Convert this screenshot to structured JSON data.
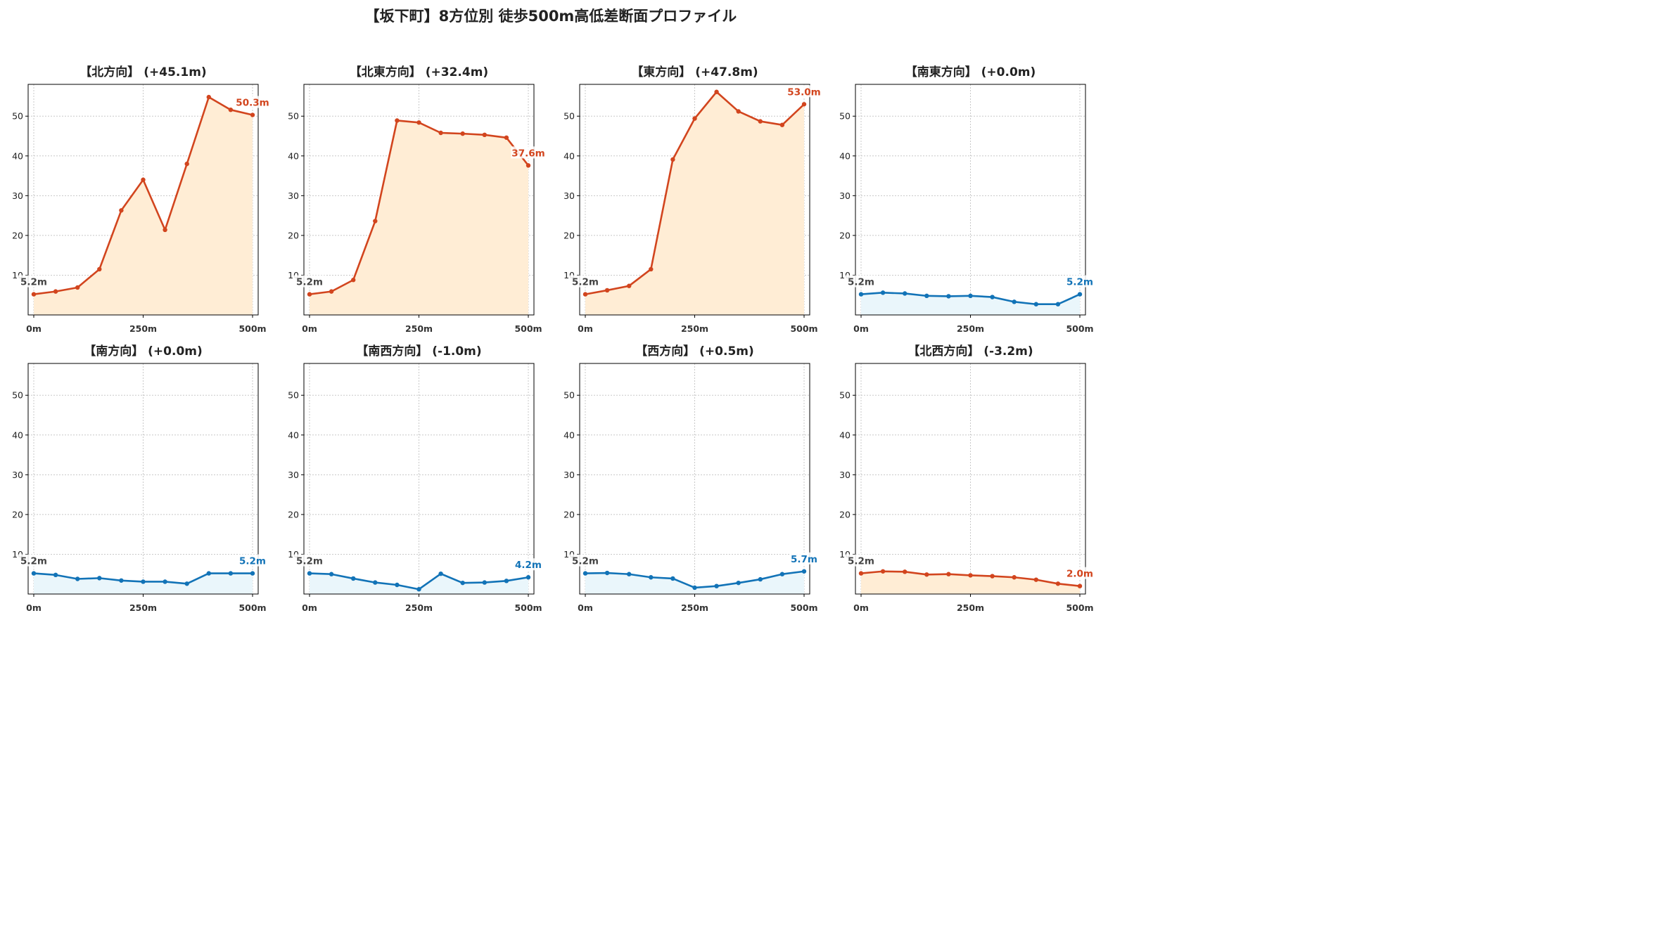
{
  "title": "【坂下町】8方位別 徒歩500m高低差断面プロファイル",
  "colors": {
    "up_line": "#d2451e",
    "up_fill": "#ffedd5",
    "down_line": "#1273b7",
    "down_fill": "#eaf6fb",
    "start_label": "#444444",
    "grid": "#c8c8c8"
  },
  "chart_data": [
    {
      "type": "line",
      "title": "【北方向】 (+45.1m)",
      "trend": "up",
      "x": [
        0,
        50,
        100,
        150,
        200,
        250,
        300,
        350,
        400,
        450,
        500
      ],
      "y": [
        5.2,
        5.9,
        6.9,
        11.5,
        26.3,
        34.0,
        21.4,
        38.0,
        54.8,
        51.6,
        50.3
      ],
      "start_label": "5.2m",
      "end_label": "50.3m",
      "xticks": [
        "0m",
        "250m",
        "500m"
      ],
      "yticks": [
        10,
        20,
        30,
        40,
        50
      ],
      "ylim": [
        0,
        58
      ],
      "grid": true
    },
    {
      "type": "line",
      "title": "【北東方向】 (+32.4m)",
      "trend": "up",
      "x": [
        0,
        50,
        100,
        150,
        200,
        250,
        300,
        350,
        400,
        450,
        500
      ],
      "y": [
        5.2,
        5.9,
        8.8,
        23.6,
        48.9,
        48.4,
        45.8,
        45.6,
        45.3,
        44.6,
        37.6
      ],
      "start_label": "5.2m",
      "end_label": "37.6m",
      "xticks": [
        "0m",
        "250m",
        "500m"
      ],
      "yticks": [
        10,
        20,
        30,
        40,
        50
      ],
      "ylim": [
        0,
        58
      ],
      "grid": true
    },
    {
      "type": "line",
      "title": "【東方向】 (+47.8m)",
      "trend": "up",
      "x": [
        0,
        50,
        100,
        150,
        200,
        250,
        300,
        350,
        400,
        450,
        500
      ],
      "y": [
        5.2,
        6.2,
        7.3,
        11.5,
        39.1,
        49.4,
        56.1,
        51.2,
        48.7,
        47.8,
        53.0
      ],
      "start_label": "5.2m",
      "end_label": "53.0m",
      "xticks": [
        "0m",
        "250m",
        "500m"
      ],
      "yticks": [
        10,
        20,
        30,
        40,
        50
      ],
      "ylim": [
        0,
        58
      ],
      "grid": true
    },
    {
      "type": "line",
      "title": "【南東方向】 (+0.0m)",
      "trend": "down",
      "x": [
        0,
        50,
        100,
        150,
        200,
        250,
        300,
        350,
        400,
        450,
        500
      ],
      "y": [
        5.2,
        5.6,
        5.4,
        4.8,
        4.7,
        4.8,
        4.5,
        3.3,
        2.7,
        2.7,
        5.2
      ],
      "start_label": "5.2m",
      "end_label": "5.2m",
      "xticks": [
        "0m",
        "250m",
        "500m"
      ],
      "yticks": [
        10,
        20,
        30,
        40,
        50
      ],
      "ylim": [
        0,
        58
      ],
      "grid": true
    },
    {
      "type": "line",
      "title": "【南方向】 (+0.0m)",
      "trend": "down",
      "x": [
        0,
        50,
        100,
        150,
        200,
        250,
        300,
        350,
        400,
        450,
        500
      ],
      "y": [
        5.2,
        4.8,
        3.8,
        4.0,
        3.4,
        3.1,
        3.1,
        2.6,
        5.2,
        5.2,
        5.2
      ],
      "start_label": "5.2m",
      "end_label": "5.2m",
      "xticks": [
        "0m",
        "250m",
        "500m"
      ],
      "yticks": [
        10,
        20,
        30,
        40,
        50
      ],
      "ylim": [
        0,
        58
      ],
      "grid": true
    },
    {
      "type": "line",
      "title": "【南西方向】 (-1.0m)",
      "trend": "down",
      "x": [
        0,
        50,
        100,
        150,
        200,
        250,
        300,
        350,
        400,
        450,
        500
      ],
      "y": [
        5.2,
        5.0,
        3.9,
        2.9,
        2.3,
        1.2,
        5.1,
        2.8,
        2.9,
        3.3,
        4.2
      ],
      "start_label": "5.2m",
      "end_label": "4.2m",
      "xticks": [
        "0m",
        "250m",
        "500m"
      ],
      "yticks": [
        10,
        20,
        30,
        40,
        50
      ],
      "ylim": [
        0,
        58
      ],
      "grid": true
    },
    {
      "type": "line",
      "title": "【西方向】 (+0.5m)",
      "trend": "down",
      "x": [
        0,
        50,
        100,
        150,
        200,
        250,
        300,
        350,
        400,
        450,
        500
      ],
      "y": [
        5.2,
        5.3,
        5.0,
        4.2,
        3.9,
        1.6,
        2.0,
        2.8,
        3.7,
        5.0,
        5.7
      ],
      "start_label": "5.2m",
      "end_label": "5.7m",
      "xticks": [
        "0m",
        "250m",
        "500m"
      ],
      "yticks": [
        10,
        20,
        30,
        40,
        50
      ],
      "ylim": [
        0,
        58
      ],
      "grid": true
    },
    {
      "type": "line",
      "title": "【北西方向】 (-3.2m)",
      "trend": "up",
      "x": [
        0,
        50,
        100,
        150,
        200,
        250,
        300,
        350,
        400,
        450,
        500
      ],
      "y": [
        5.2,
        5.7,
        5.6,
        4.9,
        5.0,
        4.7,
        4.5,
        4.2,
        3.6,
        2.6,
        2.0
      ],
      "start_label": "5.2m",
      "end_label": "2.0m",
      "xticks": [
        "0m",
        "250m",
        "500m"
      ],
      "yticks": [
        10,
        20,
        30,
        40,
        50
      ],
      "ylim": [
        0,
        58
      ],
      "grid": true
    }
  ]
}
